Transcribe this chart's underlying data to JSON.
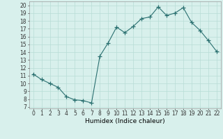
{
  "x": [
    0,
    1,
    2,
    3,
    4,
    5,
    6,
    7,
    8,
    9,
    10,
    11,
    12,
    13,
    14,
    15,
    16,
    17,
    18,
    19,
    20,
    21,
    22
  ],
  "y": [
    11.2,
    10.5,
    10.0,
    9.5,
    8.3,
    7.9,
    7.8,
    7.5,
    13.5,
    15.2,
    17.2,
    16.5,
    17.3,
    18.3,
    18.5,
    19.8,
    18.7,
    19.0,
    19.7,
    17.8,
    16.8,
    15.5,
    14.1
  ],
  "line_color": "#2a7070",
  "marker": "+",
  "marker_size": 4,
  "marker_color": "#2a7070",
  "bg_color": "#d8f0ec",
  "grid_color": "#b8dcd6",
  "xlabel": "Humidex (Indice chaleur)",
  "xlim": [
    -0.5,
    22.5
  ],
  "ylim": [
    6.8,
    20.5
  ],
  "yticks": [
    7,
    8,
    9,
    10,
    11,
    12,
    13,
    14,
    15,
    16,
    17,
    18,
    19,
    20
  ],
  "xticks": [
    0,
    1,
    2,
    3,
    4,
    5,
    6,
    7,
    8,
    9,
    10,
    11,
    12,
    13,
    14,
    15,
    16,
    17,
    18,
    19,
    20,
    21,
    22
  ],
  "label_fontsize": 6.5,
  "tick_fontsize": 5.5
}
